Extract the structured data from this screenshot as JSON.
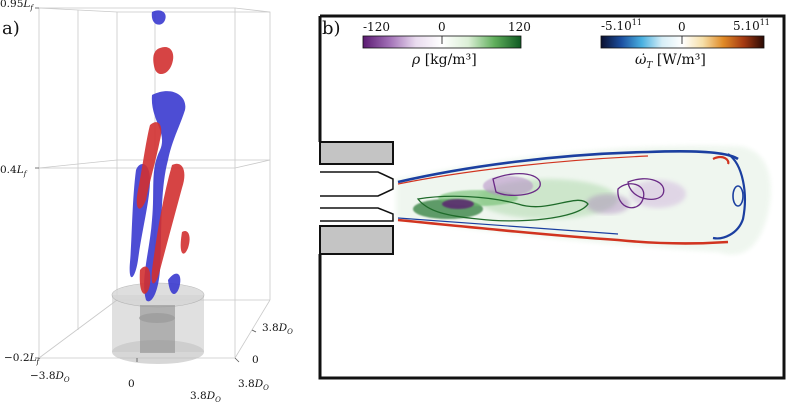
{
  "panel_a": {
    "label": "a)",
    "z_ticks": {
      "top": "0.95",
      "top_unit": "L",
      "top_sub": "f",
      "mid": "0.4",
      "mid_unit": "L",
      "mid_sub": "f",
      "bottom": "−0.2",
      "bottom_unit": "L",
      "bottom_sub": "f"
    },
    "x_ticks": {
      "left": "−3.8",
      "left_unit": "D",
      "left_sub": "O",
      "center": "0",
      "right": "3.8",
      "right_unit": "D",
      "right_sub": "O"
    },
    "y_ticks": {
      "back": "3.8",
      "back_unit": "D",
      "back_sub": "O",
      "center": "0",
      "front": "3.8",
      "front_unit": "D",
      "front_sub": "O"
    }
  },
  "panel_b": {
    "label": "b)",
    "rho_colorbar": {
      "min": "-120",
      "mid": "0",
      "max": "120",
      "title_sym": "ρ",
      "title_unit": "[kg/m³]",
      "colors": [
        "#5b1a72",
        "#a16fb6",
        "#e9dbef",
        "#ffffff",
        "#dbefd6",
        "#5fae5b",
        "#0f5a22"
      ]
    },
    "omega_colorbar": {
      "min": "-5.10",
      "min_exp": "11",
      "mid": "0",
      "max": "5.10",
      "max_exp": "11",
      "title_sym": "ω̇",
      "title_sub": "T",
      "title_unit": "[W/m³]",
      "colors": [
        "#0a0f2e",
        "#1b4fa0",
        "#49b0e0",
        "#d6eef7",
        "#ffffff",
        "#f6dfa8",
        "#e08a26",
        "#a53a12",
        "#2a0a05"
      ]
    }
  }
}
